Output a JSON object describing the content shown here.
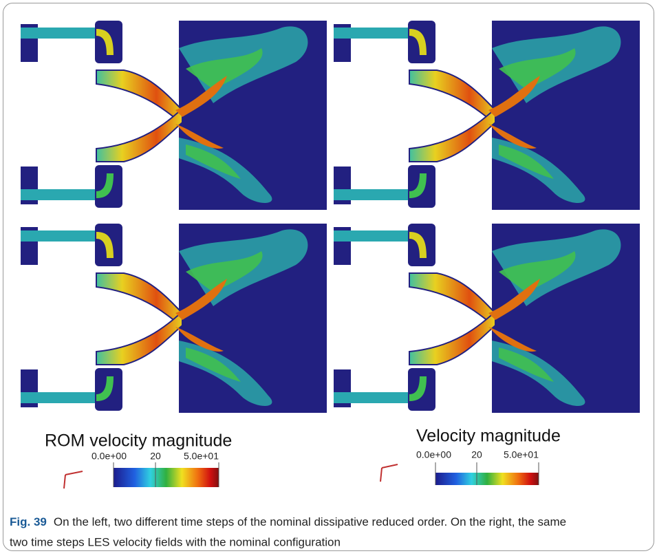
{
  "figure": {
    "panels": [
      {
        "title": "ROM velocity magnitude",
        "colorbar": {
          "ticks": [
            "0.0e+00",
            "20",
            "5.0e+01"
          ]
        }
      },
      {
        "title": "Velocity magnitude",
        "colorbar": {
          "ticks": [
            "0.0e+00",
            "20",
            "5.0e+01"
          ]
        }
      }
    ],
    "caption": {
      "label": "Fig. 39",
      "lines": [
        "On the left, two different time steps of the nominal dissipative reduced order. On the right, the same",
        "two time steps LES velocity fields with the nominal configuration"
      ]
    }
  }
}
